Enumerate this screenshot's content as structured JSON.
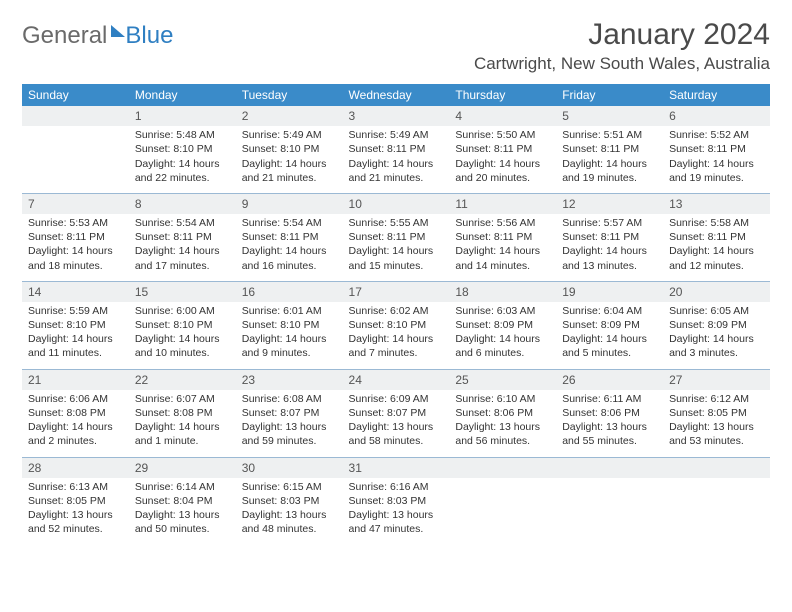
{
  "logo": {
    "word1": "General",
    "word2": "Blue"
  },
  "title": "January 2024",
  "location": "Cartwright, New South Wales, Australia",
  "colors": {
    "header_bg": "#3a8bc9",
    "header_text": "#ffffff",
    "daynum_bg": "#eef0f1",
    "sep_line": "#9bb9d4",
    "text": "#333333",
    "logo_gray": "#6a6a6a",
    "logo_blue": "#2f7fc2"
  },
  "weekdays": [
    "Sunday",
    "Monday",
    "Tuesday",
    "Wednesday",
    "Thursday",
    "Friday",
    "Saturday"
  ],
  "weeks": [
    [
      null,
      {
        "n": "1",
        "sr": "Sunrise: 5:48 AM",
        "ss": "Sunset: 8:10 PM",
        "d1": "Daylight: 14 hours",
        "d2": "and 22 minutes."
      },
      {
        "n": "2",
        "sr": "Sunrise: 5:49 AM",
        "ss": "Sunset: 8:10 PM",
        "d1": "Daylight: 14 hours",
        "d2": "and 21 minutes."
      },
      {
        "n": "3",
        "sr": "Sunrise: 5:49 AM",
        "ss": "Sunset: 8:11 PM",
        "d1": "Daylight: 14 hours",
        "d2": "and 21 minutes."
      },
      {
        "n": "4",
        "sr": "Sunrise: 5:50 AM",
        "ss": "Sunset: 8:11 PM",
        "d1": "Daylight: 14 hours",
        "d2": "and 20 minutes."
      },
      {
        "n": "5",
        "sr": "Sunrise: 5:51 AM",
        "ss": "Sunset: 8:11 PM",
        "d1": "Daylight: 14 hours",
        "d2": "and 19 minutes."
      },
      {
        "n": "6",
        "sr": "Sunrise: 5:52 AM",
        "ss": "Sunset: 8:11 PM",
        "d1": "Daylight: 14 hours",
        "d2": "and 19 minutes."
      }
    ],
    [
      {
        "n": "7",
        "sr": "Sunrise: 5:53 AM",
        "ss": "Sunset: 8:11 PM",
        "d1": "Daylight: 14 hours",
        "d2": "and 18 minutes."
      },
      {
        "n": "8",
        "sr": "Sunrise: 5:54 AM",
        "ss": "Sunset: 8:11 PM",
        "d1": "Daylight: 14 hours",
        "d2": "and 17 minutes."
      },
      {
        "n": "9",
        "sr": "Sunrise: 5:54 AM",
        "ss": "Sunset: 8:11 PM",
        "d1": "Daylight: 14 hours",
        "d2": "and 16 minutes."
      },
      {
        "n": "10",
        "sr": "Sunrise: 5:55 AM",
        "ss": "Sunset: 8:11 PM",
        "d1": "Daylight: 14 hours",
        "d2": "and 15 minutes."
      },
      {
        "n": "11",
        "sr": "Sunrise: 5:56 AM",
        "ss": "Sunset: 8:11 PM",
        "d1": "Daylight: 14 hours",
        "d2": "and 14 minutes."
      },
      {
        "n": "12",
        "sr": "Sunrise: 5:57 AM",
        "ss": "Sunset: 8:11 PM",
        "d1": "Daylight: 14 hours",
        "d2": "and 13 minutes."
      },
      {
        "n": "13",
        "sr": "Sunrise: 5:58 AM",
        "ss": "Sunset: 8:11 PM",
        "d1": "Daylight: 14 hours",
        "d2": "and 12 minutes."
      }
    ],
    [
      {
        "n": "14",
        "sr": "Sunrise: 5:59 AM",
        "ss": "Sunset: 8:10 PM",
        "d1": "Daylight: 14 hours",
        "d2": "and 11 minutes."
      },
      {
        "n": "15",
        "sr": "Sunrise: 6:00 AM",
        "ss": "Sunset: 8:10 PM",
        "d1": "Daylight: 14 hours",
        "d2": "and 10 minutes."
      },
      {
        "n": "16",
        "sr": "Sunrise: 6:01 AM",
        "ss": "Sunset: 8:10 PM",
        "d1": "Daylight: 14 hours",
        "d2": "and 9 minutes."
      },
      {
        "n": "17",
        "sr": "Sunrise: 6:02 AM",
        "ss": "Sunset: 8:10 PM",
        "d1": "Daylight: 14 hours",
        "d2": "and 7 minutes."
      },
      {
        "n": "18",
        "sr": "Sunrise: 6:03 AM",
        "ss": "Sunset: 8:09 PM",
        "d1": "Daylight: 14 hours",
        "d2": "and 6 minutes."
      },
      {
        "n": "19",
        "sr": "Sunrise: 6:04 AM",
        "ss": "Sunset: 8:09 PM",
        "d1": "Daylight: 14 hours",
        "d2": "and 5 minutes."
      },
      {
        "n": "20",
        "sr": "Sunrise: 6:05 AM",
        "ss": "Sunset: 8:09 PM",
        "d1": "Daylight: 14 hours",
        "d2": "and 3 minutes."
      }
    ],
    [
      {
        "n": "21",
        "sr": "Sunrise: 6:06 AM",
        "ss": "Sunset: 8:08 PM",
        "d1": "Daylight: 14 hours",
        "d2": "and 2 minutes."
      },
      {
        "n": "22",
        "sr": "Sunrise: 6:07 AM",
        "ss": "Sunset: 8:08 PM",
        "d1": "Daylight: 14 hours",
        "d2": "and 1 minute."
      },
      {
        "n": "23",
        "sr": "Sunrise: 6:08 AM",
        "ss": "Sunset: 8:07 PM",
        "d1": "Daylight: 13 hours",
        "d2": "and 59 minutes."
      },
      {
        "n": "24",
        "sr": "Sunrise: 6:09 AM",
        "ss": "Sunset: 8:07 PM",
        "d1": "Daylight: 13 hours",
        "d2": "and 58 minutes."
      },
      {
        "n": "25",
        "sr": "Sunrise: 6:10 AM",
        "ss": "Sunset: 8:06 PM",
        "d1": "Daylight: 13 hours",
        "d2": "and 56 minutes."
      },
      {
        "n": "26",
        "sr": "Sunrise: 6:11 AM",
        "ss": "Sunset: 8:06 PM",
        "d1": "Daylight: 13 hours",
        "d2": "and 55 minutes."
      },
      {
        "n": "27",
        "sr": "Sunrise: 6:12 AM",
        "ss": "Sunset: 8:05 PM",
        "d1": "Daylight: 13 hours",
        "d2": "and 53 minutes."
      }
    ],
    [
      {
        "n": "28",
        "sr": "Sunrise: 6:13 AM",
        "ss": "Sunset: 8:05 PM",
        "d1": "Daylight: 13 hours",
        "d2": "and 52 minutes."
      },
      {
        "n": "29",
        "sr": "Sunrise: 6:14 AM",
        "ss": "Sunset: 8:04 PM",
        "d1": "Daylight: 13 hours",
        "d2": "and 50 minutes."
      },
      {
        "n": "30",
        "sr": "Sunrise: 6:15 AM",
        "ss": "Sunset: 8:03 PM",
        "d1": "Daylight: 13 hours",
        "d2": "and 48 minutes."
      },
      {
        "n": "31",
        "sr": "Sunrise: 6:16 AM",
        "ss": "Sunset: 8:03 PM",
        "d1": "Daylight: 13 hours",
        "d2": "and 47 minutes."
      },
      null,
      null,
      null
    ]
  ]
}
